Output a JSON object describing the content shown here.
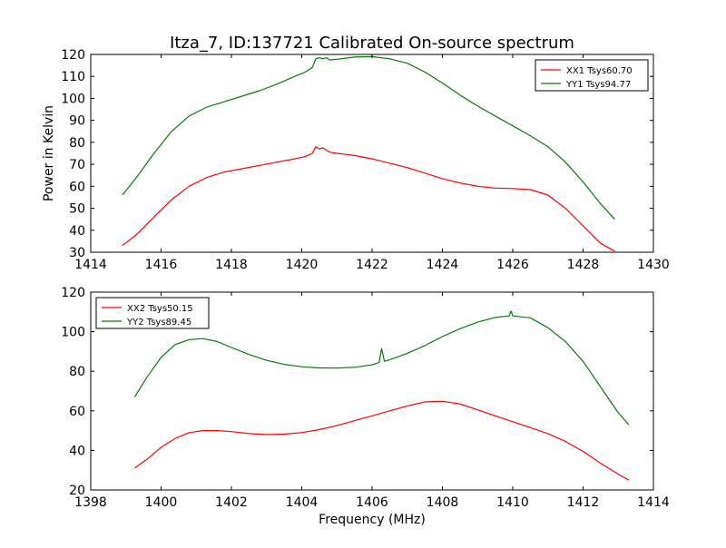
{
  "figure": {
    "title": "Itza_7, ID:137721 Calibrated On-source spectrum",
    "ylabel": "Power in Kelvin",
    "xlabel": "Frequency (MHz)"
  },
  "colors": {
    "xx": "#ff0000",
    "yy": "#007f00",
    "axes": "#000000",
    "background": "#ffffff"
  },
  "chart_data": [
    {
      "type": "line",
      "title": "Itza_7, ID:137721 Calibrated On-source spectrum",
      "xlabel": "",
      "ylabel": "Power in Kelvin",
      "xlim": [
        1414,
        1430
      ],
      "ylim": [
        30,
        120
      ],
      "xticks": [
        1414,
        1416,
        1418,
        1420,
        1422,
        1424,
        1426,
        1428,
        1430
      ],
      "yticks": [
        30,
        40,
        50,
        60,
        70,
        80,
        90,
        100,
        110,
        120
      ],
      "grid": false,
      "legend": "top-right",
      "series": [
        {
          "name": "XX1 Tsys60.70",
          "color": "#ff0000",
          "x": [
            1414.9,
            1415.3,
            1415.8,
            1416.3,
            1416.8,
            1417.3,
            1417.8,
            1418.3,
            1418.8,
            1419.3,
            1419.8,
            1420.1,
            1420.3,
            1420.4,
            1420.5,
            1420.6,
            1420.7,
            1420.8,
            1421.0,
            1421.5,
            1422.0,
            1422.5,
            1423.0,
            1423.5,
            1424.0,
            1424.5,
            1425.0,
            1425.5,
            1426.0,
            1426.5,
            1427.0,
            1427.5,
            1428.0,
            1428.5,
            1428.9
          ],
          "y": [
            33,
            38,
            46,
            54,
            60,
            64,
            66.5,
            68,
            69.5,
            71,
            72.5,
            73.5,
            75,
            78,
            77,
            77.5,
            76.5,
            75.5,
            75,
            74,
            72.5,
            70.5,
            68.5,
            66,
            63.5,
            61.5,
            60,
            59.2,
            59,
            58.5,
            56,
            50,
            42,
            34,
            30.5
          ]
        },
        {
          "name": "YY1 Tsys94.77",
          "color": "#007f00",
          "x": [
            1414.9,
            1415.3,
            1415.8,
            1416.3,
            1416.8,
            1417.3,
            1417.8,
            1418.3,
            1418.8,
            1419.3,
            1419.8,
            1420.1,
            1420.3,
            1420.4,
            1420.5,
            1420.6,
            1420.7,
            1420.8,
            1421.0,
            1421.5,
            1422.0,
            1422.5,
            1423.0,
            1423.5,
            1424.0,
            1424.5,
            1425.0,
            1425.5,
            1426.0,
            1426.5,
            1427.0,
            1427.5,
            1428.0,
            1428.5,
            1428.9
          ],
          "y": [
            56,
            64,
            75,
            85,
            92,
            96,
            98.5,
            101,
            103.5,
            106.5,
            110,
            112,
            114,
            118,
            118.5,
            118,
            118.5,
            117.5,
            117.8,
            118.8,
            119,
            118,
            116,
            112,
            107,
            101.5,
            96.5,
            92,
            87.5,
            83,
            78,
            71,
            62,
            52,
            45
          ]
        }
      ]
    },
    {
      "type": "line",
      "title": "",
      "xlabel": "Frequency (MHz)",
      "ylabel": "",
      "xlim": [
        1398,
        1414
      ],
      "ylim": [
        20,
        120
      ],
      "xticks": [
        1398,
        1400,
        1402,
        1404,
        1406,
        1408,
        1410,
        1412,
        1414
      ],
      "yticks": [
        20,
        40,
        60,
        80,
        100,
        120
      ],
      "grid": false,
      "legend": "top-left",
      "series": [
        {
          "name": "XX2 Tsys50.15",
          "color": "#ff0000",
          "x": [
            1399.25,
            1399.6,
            1400.0,
            1400.4,
            1400.8,
            1401.2,
            1401.6,
            1402.0,
            1402.5,
            1403.0,
            1403.5,
            1404.0,
            1404.5,
            1405.0,
            1405.5,
            1406.0,
            1406.5,
            1407.0,
            1407.5,
            1408.0,
            1408.5,
            1409.0,
            1409.5,
            1410.0,
            1410.5,
            1411.0,
            1411.5,
            1412.0,
            1412.5,
            1413.0,
            1413.3
          ],
          "y": [
            31,
            35.5,
            41.5,
            46,
            49,
            50,
            50,
            49.5,
            48.5,
            48,
            48.2,
            49,
            50.5,
            52.5,
            55,
            57.5,
            60,
            62.5,
            64.5,
            64.8,
            63.5,
            60.5,
            57.5,
            54.5,
            51.5,
            48.5,
            44.5,
            39.5,
            33.5,
            28,
            25
          ]
        },
        {
          "name": "YY2 Tsys89.45",
          "color": "#007f00",
          "x": [
            1399.25,
            1399.6,
            1400.0,
            1400.4,
            1400.8,
            1401.2,
            1401.6,
            1402.0,
            1402.5,
            1403.0,
            1403.5,
            1404.0,
            1404.5,
            1405.0,
            1405.5,
            1406.0,
            1406.2,
            1406.27,
            1406.35,
            1406.5,
            1407.0,
            1407.5,
            1408.0,
            1408.5,
            1409.0,
            1409.5,
            1409.9,
            1409.95,
            1410.0,
            1410.5,
            1411.0,
            1411.5,
            1412.0,
            1412.5,
            1413.0,
            1413.3
          ],
          "y": [
            67,
            77,
            87,
            93.5,
            96,
            96.5,
            95,
            92,
            88.5,
            85.5,
            83.5,
            82.3,
            81.7,
            81.6,
            82,
            83.2,
            84.5,
            91.5,
            85,
            85.8,
            89,
            93,
            97.5,
            101.5,
            104.8,
            107.2,
            108,
            110.5,
            108,
            107,
            102,
            95,
            85,
            72,
            59,
            53
          ]
        }
      ]
    }
  ]
}
